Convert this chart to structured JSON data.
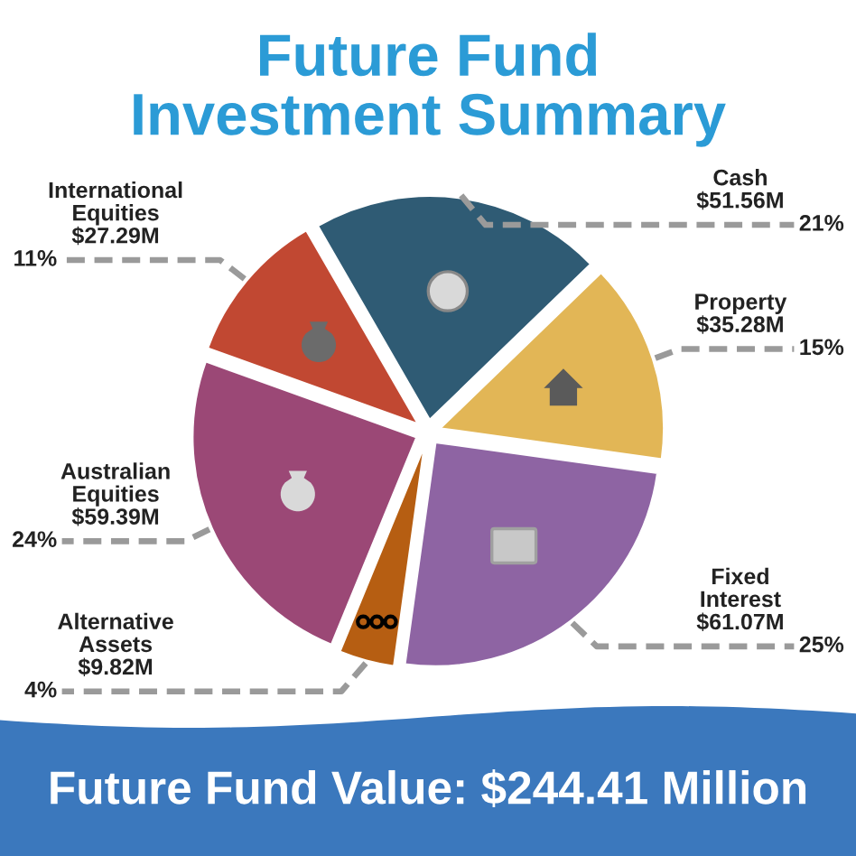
{
  "chart_data": {
    "type": "pie",
    "title": "Future Fund Investment Summary",
    "categories": [
      "Cash",
      "Property",
      "Fixed Interest",
      "Alternative Assets",
      "Australian Equities",
      "International Equities"
    ],
    "values": [
      51.56,
      35.28,
      61.07,
      9.82,
      59.39,
      27.29
    ],
    "colors": [
      "#2f5b74",
      "#e2b656",
      "#8e64a3",
      "#b65e12",
      "#9b4876",
      "#c14832"
    ],
    "value_labels": [
      "$51.56M",
      "$35.28M",
      "$61.07M",
      "$9.82M",
      "$59.39M",
      "$27.29M"
    ],
    "annotations": [
      {
        "text": "21%",
        "x": "Cash"
      },
      {
        "text": "15%",
        "x": "Property"
      },
      {
        "text": "25%",
        "x": "Fixed Interest"
      },
      {
        "text": "4%",
        "x": "Alternative Assets"
      },
      {
        "text": "24%",
        "x": "Australian Equities"
      },
      {
        "text": "11%",
        "x": "International Equities"
      },
      "Future Fund Value: $244.41 Million"
    ]
  }
}
